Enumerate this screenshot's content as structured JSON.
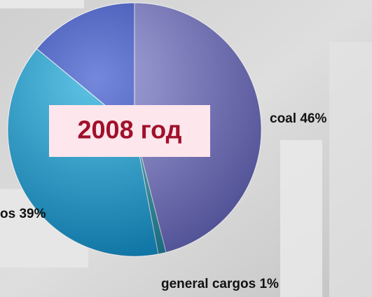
{
  "chart_data": {
    "type": "pie",
    "title": "2008 год",
    "categories": [
      "coal",
      "general cargos",
      "os",
      null
    ],
    "values": [
      46,
      1,
      39,
      14
    ],
    "value_labels": [
      "46%",
      "1%",
      "39%",
      null
    ],
    "colors": [
      "#7676c8",
      "#1a9aa0",
      "#0aa6d8",
      "#2a48c8"
    ],
    "start_angle": 0,
    "direction": "clockwise"
  }
}
